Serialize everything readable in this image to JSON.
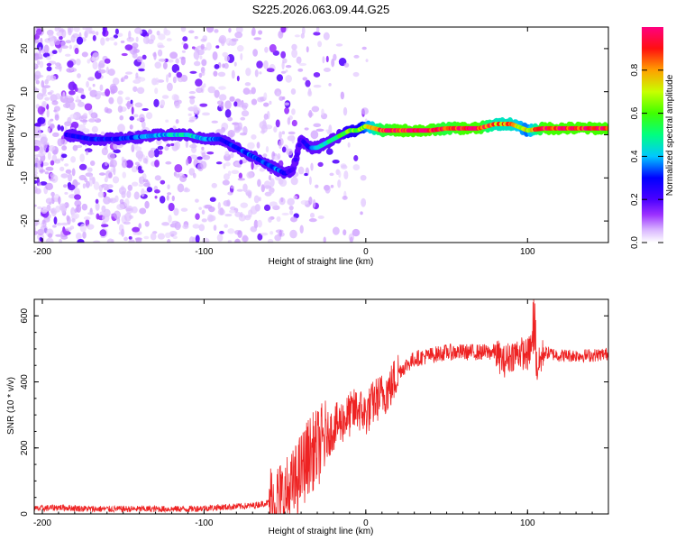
{
  "title": "S225.2026.063.09.44.G25",
  "colors": {
    "snr_line": "#ee2222",
    "colormap": [
      "#ffffff",
      "#d8b4ff",
      "#9b30ff",
      "#6a00ff",
      "#0000ff",
      "#00c0ff",
      "#00ff80",
      "#40ff00",
      "#ffff00",
      "#ff6000",
      "#ff0000",
      "#ff0080"
    ]
  },
  "chart_data": [
    {
      "type": "heatmap",
      "title": "S225.2026.063.09.44.G25",
      "xlabel": "Height of straight line (km)",
      "ylabel": "Frequency (Hz)",
      "xlim": [
        -205,
        150
      ],
      "ylim": [
        -25,
        25
      ],
      "xticks": [
        -200,
        -100,
        0,
        100
      ],
      "yticks": [
        -20,
        -10,
        0,
        10,
        20
      ],
      "ridge": {
        "x": [
          -185,
          -170,
          -155,
          -140,
          -125,
          -110,
          -100,
          -90,
          -80,
          -70,
          -60,
          -55,
          -50,
          -45,
          -40,
          -35,
          -30,
          -25,
          -20,
          -15,
          -10,
          -5,
          0,
          10,
          20,
          30,
          40,
          50,
          60,
          70,
          80,
          90,
          100,
          110,
          120,
          130,
          150
        ],
        "freq": [
          0,
          -1,
          -1,
          -0.5,
          0,
          0,
          -1,
          -1,
          -3,
          -5,
          -7,
          -8,
          -9,
          -8,
          -1,
          -3,
          -3,
          -2,
          -1,
          0,
          1,
          1,
          2,
          1,
          1,
          1,
          1,
          1.5,
          1.5,
          1.5,
          2.5,
          2.5,
          1,
          1.5,
          1.5,
          1.5,
          1.5
        ],
        "amplitude": [
          0.25,
          0.3,
          0.3,
          0.35,
          0.4,
          0.45,
          0.4,
          0.3,
          0.3,
          0.35,
          0.3,
          0.35,
          0.25,
          0.2,
          0.2,
          0.3,
          0.4,
          0.45,
          0.5,
          0.55,
          0.6,
          0.6,
          0.7,
          0.9,
          0.95,
          0.95,
          0.95,
          0.9,
          0.95,
          0.95,
          0.8,
          0.8,
          0.7,
          0.95,
          0.95,
          0.95,
          0.95
        ]
      },
      "colorbar": {
        "label": "Normalized spectral amplitude",
        "range": [
          0,
          1
        ],
        "ticks": [
          0.0,
          0.2,
          0.4,
          0.6,
          0.8
        ]
      }
    },
    {
      "type": "line",
      "title": "",
      "xlabel": "Height of straight line (km)",
      "ylabel": "SNR (10 * v/v)",
      "xlim": [
        -205,
        150
      ],
      "ylim": [
        0,
        650
      ],
      "xticks": [
        -200,
        -100,
        0,
        100
      ],
      "yticks": [
        0,
        200,
        400,
        600
      ],
      "series": [
        {
          "name": "SNR",
          "x": [
            -205,
            -190,
            -170,
            -150,
            -130,
            -110,
            -90,
            -70,
            -60,
            -50,
            -45,
            -40,
            -35,
            -30,
            -25,
            -20,
            -15,
            -10,
            -5,
            0,
            5,
            10,
            15,
            20,
            25,
            30,
            40,
            50,
            60,
            70,
            80,
            85,
            90,
            95,
            100,
            103,
            106,
            110,
            120,
            130,
            140,
            150
          ],
          "y": [
            15,
            20,
            15,
            15,
            15,
            15,
            20,
            25,
            35,
            50,
            80,
            130,
            180,
            200,
            230,
            260,
            280,
            300,
            320,
            300,
            340,
            360,
            380,
            430,
            450,
            470,
            480,
            490,
            490,
            490,
            490,
            460,
            480,
            490,
            480,
            520,
            440,
            490,
            480,
            480,
            480,
            485
          ]
        }
      ]
    }
  ]
}
